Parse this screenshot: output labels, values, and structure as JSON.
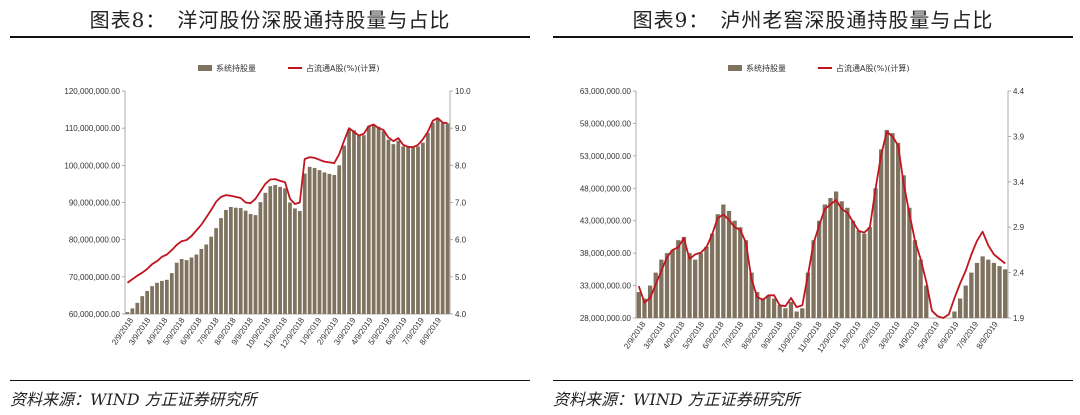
{
  "figures": [
    {
      "id": "left",
      "title": "图表8：　洋河股份深股通持股量与占比",
      "source": "资料来源：WIND 方正证券研究所",
      "chart_data": {
        "type": "bar+line",
        "legend_placement": "top-center",
        "series": [
          {
            "name": "系统持股量",
            "kind": "bar",
            "axis": "left",
            "color": "#7f725e"
          },
          {
            "name": "占流通A股(%)(计算)",
            "kind": "line",
            "axis": "right",
            "color": "#c0151f"
          }
        ],
        "y_left": {
          "min": 60000000,
          "max": 120000000,
          "ticks": [
            "120,000,000.00",
            "110,000,000.00",
            "100,000,000.00",
            "90,000,000.00",
            "80,000,000.00",
            "70,000,000.00",
            "60,000,000.00"
          ],
          "tick_values": [
            120000000,
            110000000,
            100000000,
            90000000,
            80000000,
            70000000,
            60000000
          ]
        },
        "y_right": {
          "min": 4.0,
          "max": 10.0,
          "ticks": [
            "10.0",
            "9.0",
            "8.0",
            "7.0",
            "6.0",
            "5.0",
            "4.0"
          ],
          "tick_values": [
            10,
            9,
            8,
            7,
            6,
            5,
            4
          ]
        },
        "x_ticks": [
          "2/9/2018",
          "3/9/2018",
          "4/9/2018",
          "5/9/2018",
          "6/9/2018",
          "7/9/2018",
          "8/9/2018",
          "9/9/2018",
          "10/9/2018",
          "11/9/2018",
          "12/9/2018",
          "1/9/2019",
          "2/9/2019",
          "3/9/2019",
          "4/9/2019",
          "5/9/2019",
          "6/9/2019",
          "7/9/2019",
          "8/9/2019"
        ],
        "bar_values": [
          60500000,
          61500000,
          63000000,
          64800000,
          66200000,
          67500000,
          68400000,
          68900000,
          69200000,
          71000000,
          73800000,
          74800000,
          74500000,
          75200000,
          76000000,
          77500000,
          78700000,
          80800000,
          83100000,
          85800000,
          88000000,
          88800000,
          88600000,
          88500000,
          87800000,
          86900000,
          86600000,
          90100000,
          92600000,
          94400000,
          94700000,
          94200000,
          93800000,
          90000000,
          88400000,
          87700000,
          97800000,
          99600000,
          99300000,
          98700000,
          98100000,
          97700000,
          97400000,
          100000000,
          105300000,
          109700000,
          109400000,
          107900000,
          108100000,
          110600000,
          110700000,
          110400000,
          109200000,
          106900000,
          105700000,
          106600000,
          105100000,
          104900000,
          104900000,
          105100000,
          106100000,
          108700000,
          111500000,
          112500000,
          111400000,
          111300000
        ],
        "line_values": [
          4.84,
          4.94,
          5.03,
          5.11,
          5.21,
          5.34,
          5.42,
          5.54,
          5.6,
          5.72,
          5.86,
          5.96,
          5.99,
          6.1,
          6.25,
          6.4,
          6.6,
          6.8,
          7.02,
          7.15,
          7.2,
          7.18,
          7.15,
          7.12,
          7.0,
          6.98,
          7.1,
          7.3,
          7.5,
          7.62,
          7.63,
          7.58,
          7.55,
          7.1,
          6.96,
          7.0,
          8.17,
          8.22,
          8.2,
          8.15,
          8.1,
          8.08,
          8.06,
          8.3,
          8.66,
          9.0,
          8.9,
          8.8,
          8.85,
          9.05,
          9.1,
          9.0,
          8.95,
          8.75,
          8.65,
          8.73,
          8.55,
          8.5,
          8.49,
          8.55,
          8.7,
          8.9,
          9.2,
          9.27,
          9.15,
          9.14
        ]
      }
    },
    {
      "id": "right",
      "title": "图表9：　泸州老窖深股通持股量与占比",
      "source": "资料来源：WIND 方正证券研究所",
      "chart_data": {
        "type": "bar+line",
        "legend_placement": "top-center",
        "series": [
          {
            "name": "系统持股量",
            "kind": "bar",
            "axis": "left",
            "color": "#7f725e"
          },
          {
            "name": "占流通A股(%)(计算)",
            "kind": "line",
            "axis": "right",
            "color": "#c0151f"
          }
        ],
        "y_left": {
          "min": 28000000,
          "max": 63000000,
          "ticks": [
            "63,000,000.00",
            "58,000,000.00",
            "53,000,000.00",
            "48,000,000.00",
            "43,000,000.00",
            "38,000,000.00",
            "33,000,000.00",
            "28,000,000.00"
          ],
          "tick_values": [
            63000000,
            58000000,
            53000000,
            48000000,
            43000000,
            38000000,
            33000000,
            28000000
          ]
        },
        "y_right": {
          "min": 1.9,
          "max": 4.4,
          "ticks": [
            "4.4",
            "3.9",
            "3.4",
            "2.9",
            "2.4",
            "1.9"
          ],
          "tick_values": [
            4.4,
            3.9,
            3.4,
            2.9,
            2.4,
            1.9
          ]
        },
        "x_ticks": [
          "2/9/2018",
          "3/9/2018",
          "4/9/2018",
          "5/9/2018",
          "6/9/2018",
          "7/9/2018",
          "8/9/2018",
          "9/9/2018",
          "10/9/2018",
          "11/9/2018",
          "12/9/2018",
          "1/9/2019",
          "2/9/2019",
          "3/9/2019",
          "4/9/2019",
          "5/9/2019",
          "6/9/2019",
          "7/9/2019",
          "8/9/2019"
        ],
        "bar_values": [
          32000000,
          31000000,
          33000000,
          35000000,
          37000000,
          38000000,
          38500000,
          40000000,
          40500000,
          38000000,
          37000000,
          38000000,
          39000000,
          41000000,
          44000000,
          45500000,
          44500000,
          43000000,
          42000000,
          40000000,
          35000000,
          32000000,
          31000000,
          31500000,
          31000000,
          30000000,
          29500000,
          30500000,
          29000000,
          29500000,
          35000000,
          40000000,
          43000000,
          45500000,
          46500000,
          47500000,
          46000000,
          45000000,
          43000000,
          41500000,
          41000000,
          42000000,
          48000000,
          54000000,
          57000000,
          56500000,
          55000000,
          50000000,
          45000000,
          40000000,
          37000000,
          33000000,
          28000000,
          27000000,
          26500000,
          27000000,
          29000000,
          31000000,
          33000000,
          35000000,
          36500000,
          37500000,
          37000000,
          36500000,
          36000000,
          35500000
        ],
        "line_values": [
          2.25,
          2.07,
          2.12,
          2.27,
          2.42,
          2.57,
          2.65,
          2.68,
          2.78,
          2.55,
          2.6,
          2.62,
          2.68,
          2.82,
          3.0,
          3.04,
          2.98,
          2.9,
          2.87,
          2.73,
          2.33,
          2.13,
          2.1,
          2.15,
          2.15,
          2.04,
          2.03,
          2.12,
          2.02,
          2.04,
          2.37,
          2.72,
          2.92,
          3.1,
          3.15,
          3.2,
          3.1,
          3.06,
          2.96,
          2.86,
          2.84,
          2.9,
          3.32,
          3.7,
          3.95,
          3.9,
          3.8,
          3.38,
          3.05,
          2.75,
          2.55,
          2.3,
          1.98,
          1.92,
          1.9,
          1.94,
          2.12,
          2.28,
          2.42,
          2.6,
          2.75,
          2.85,
          2.7,
          2.6,
          2.55,
          2.5
        ]
      }
    }
  ]
}
